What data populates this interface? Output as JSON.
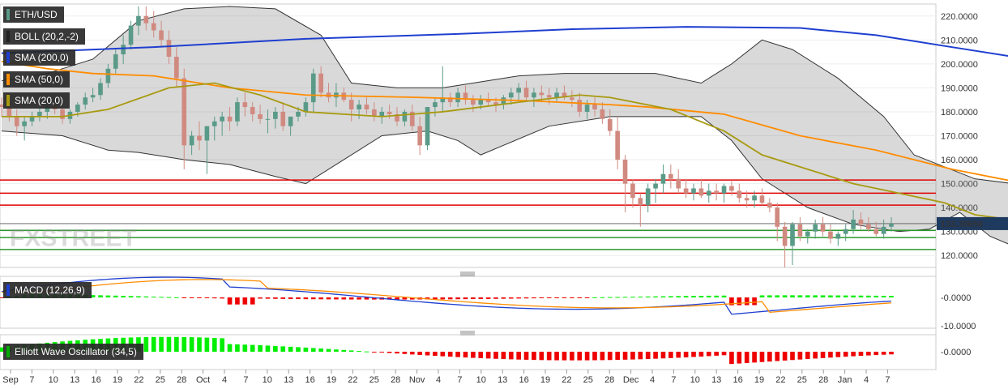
{
  "chart_data": [
    {
      "type": "candlestick",
      "symbol": "ETH/USD",
      "indicator_labels": [
        "BOLL (20,2,-2)",
        "SMA (200,0)",
        "SMA (50,0)",
        "SMA (20,0)"
      ],
      "y_ticks": [
        "220.0000",
        "210.0000",
        "200.0000",
        "190.0000",
        "180.0000",
        "170.0000",
        "160.0000",
        "150.0000",
        "140.0000",
        "130.0000",
        "120.0000"
      ],
      "ylim": [
        115,
        225
      ],
      "last_price": "133.30650",
      "last_price_value": 133.3065,
      "horizontal_levels_red": [
        151.5,
        146,
        141
      ],
      "horizontal_levels_green": [
        130.5,
        127.5,
        122.5
      ],
      "candles": [
        [
          183,
          186,
          178,
          182
        ],
        [
          182,
          184,
          176,
          178
        ],
        [
          178,
          181,
          170,
          174
        ],
        [
          174,
          178,
          168,
          176
        ],
        [
          176,
          180,
          174,
          178
        ],
        [
          178,
          182,
          176,
          180
        ],
        [
          180,
          184,
          177,
          182
        ],
        [
          182,
          185,
          179,
          181
        ],
        [
          181,
          184,
          175,
          177
        ],
        [
          177,
          181,
          175,
          180
        ],
        [
          180,
          184,
          178,
          183
        ],
        [
          183,
          188,
          181,
          186
        ],
        [
          186,
          190,
          184,
          187
        ],
        [
          187,
          194,
          185,
          192
        ],
        [
          192,
          200,
          190,
          198
        ],
        [
          198,
          206,
          196,
          204
        ],
        [
          204,
          212,
          200,
          208
        ],
        [
          208,
          218,
          206,
          216
        ],
        [
          216,
          224,
          212,
          220
        ],
        [
          220,
          224,
          214,
          217
        ],
        [
          217,
          222,
          211,
          214
        ],
        [
          214,
          218,
          207,
          210
        ],
        [
          210,
          214,
          200,
          203
        ],
        [
          203,
          207,
          190,
          194
        ],
        [
          194,
          198,
          156,
          166
        ],
        [
          166,
          172,
          162,
          170
        ],
        [
          170,
          176,
          164,
          168
        ],
        [
          168,
          174,
          154,
          174
        ],
        [
          174,
          178,
          168,
          176
        ],
        [
          176,
          180,
          170,
          178
        ],
        [
          178,
          182,
          172,
          176
        ],
        [
          176,
          186,
          174,
          184
        ],
        [
          184,
          188,
          178,
          182
        ],
        [
          182,
          184,
          176,
          179
        ],
        [
          179,
          183,
          175,
          177
        ],
        [
          177,
          181,
          171,
          177
        ],
        [
          177,
          182,
          173,
          180
        ],
        [
          180,
          184,
          172,
          174
        ],
        [
          174,
          178,
          170,
          178
        ],
        [
          178,
          182,
          176,
          180
        ],
        [
          180,
          186,
          178,
          184
        ],
        [
          184,
          198,
          180,
          196
        ],
        [
          196,
          199,
          186,
          188
        ],
        [
          188,
          192,
          184,
          186
        ],
        [
          186,
          192,
          182,
          188
        ],
        [
          188,
          190,
          184,
          185
        ],
        [
          185,
          188,
          176,
          181
        ],
        [
          181,
          185,
          177,
          183
        ],
        [
          183,
          186,
          179,
          181
        ],
        [
          181,
          184,
          176,
          178
        ],
        [
          178,
          182,
          175,
          180
        ],
        [
          180,
          183,
          177,
          179
        ],
        [
          179,
          182,
          174,
          176
        ],
        [
          176,
          181,
          174,
          180
        ],
        [
          180,
          183,
          172,
          174
        ],
        [
          174,
          178,
          162,
          166
        ],
        [
          166,
          182,
          164,
          182
        ],
        [
          182,
          186,
          178,
          184
        ],
        [
          184,
          199,
          180,
          186
        ],
        [
          186,
          188,
          182,
          184
        ],
        [
          184,
          190,
          182,
          188
        ],
        [
          188,
          191,
          183,
          185
        ],
        [
          185,
          187,
          180,
          183
        ],
        [
          183,
          187,
          181,
          185
        ],
        [
          185,
          188,
          182,
          184
        ],
        [
          184,
          186,
          180,
          183
        ],
        [
          183,
          187,
          181,
          186
        ],
        [
          186,
          190,
          183,
          188
        ],
        [
          188,
          192,
          185,
          190
        ],
        [
          190,
          193,
          184,
          186
        ],
        [
          186,
          190,
          182,
          188
        ],
        [
          188,
          191,
          184,
          187
        ],
        [
          187,
          190,
          183,
          186
        ],
        [
          186,
          190,
          184,
          188
        ],
        [
          188,
          191,
          185,
          186
        ],
        [
          186,
          189,
          182,
          185
        ],
        [
          185,
          188,
          178,
          180
        ],
        [
          180,
          185,
          177,
          183
        ],
        [
          183,
          186,
          178,
          181
        ],
        [
          181,
          184,
          175,
          177
        ],
        [
          177,
          181,
          170,
          172
        ],
        [
          172,
          178,
          156,
          160
        ],
        [
          160,
          162,
          138,
          150
        ],
        [
          150,
          152,
          140,
          144
        ],
        [
          144,
          146,
          132,
          141
        ],
        [
          141,
          150,
          138,
          148
        ],
        [
          148,
          152,
          142,
          150
        ],
        [
          150,
          158,
          146,
          154
        ],
        [
          154,
          158,
          148,
          152
        ],
        [
          152,
          156,
          146,
          148
        ],
        [
          148,
          152,
          144,
          146
        ],
        [
          146,
          150,
          143,
          148
        ],
        [
          148,
          152,
          144,
          145
        ],
        [
          145,
          150,
          142,
          147
        ],
        [
          147,
          150,
          143,
          146
        ],
        [
          146,
          150,
          142,
          149
        ],
        [
          149,
          151,
          145,
          147
        ],
        [
          147,
          150,
          142,
          144
        ],
        [
          144,
          147,
          140,
          143
        ],
        [
          143,
          147,
          140,
          145
        ],
        [
          145,
          148,
          141,
          142
        ],
        [
          142,
          144,
          138,
          140
        ],
        [
          140,
          142,
          126,
          132
        ],
        [
          132,
          134,
          115,
          124
        ],
        [
          124,
          134,
          116,
          133
        ],
        [
          133,
          136,
          126,
          128
        ],
        [
          128,
          131,
          125,
          130
        ],
        [
          130,
          135,
          127,
          133
        ],
        [
          133,
          136,
          128,
          130
        ],
        [
          130,
          133,
          125,
          127
        ],
        [
          127,
          130,
          124,
          129
        ],
        [
          129,
          133,
          126,
          131
        ],
        [
          131,
          139,
          129,
          135
        ],
        [
          135,
          138,
          131,
          133
        ],
        [
          133,
          136,
          130,
          131
        ],
        [
          131,
          134,
          128,
          129
        ],
        [
          129,
          135,
          127,
          132
        ],
        [
          132,
          136,
          130,
          133.3
        ]
      ],
      "sma200": [
        [
          0,
          204.5
        ],
        [
          20,
          207
        ],
        [
          40,
          210.5
        ],
        [
          60,
          212.5
        ],
        [
          75,
          214.5
        ],
        [
          90,
          215.5
        ],
        [
          105,
          215
        ],
        [
          115,
          212
        ],
        [
          125,
          207
        ],
        [
          135,
          202
        ],
        [
          145,
          197.5
        ],
        [
          152,
          193
        ]
      ],
      "sma50": [
        [
          0,
          201
        ],
        [
          6,
          198
        ],
        [
          12,
          196
        ],
        [
          20,
          195
        ],
        [
          30,
          190
        ],
        [
          40,
          187
        ],
        [
          55,
          186
        ],
        [
          70,
          184.5
        ],
        [
          80,
          183
        ],
        [
          85,
          182
        ],
        [
          95,
          179
        ],
        [
          105,
          170
        ],
        [
          115,
          164
        ],
        [
          125,
          156
        ],
        [
          133,
          151
        ],
        [
          140,
          146
        ],
        [
          148,
          141
        ],
        [
          152,
          144
        ]
      ],
      "sma20": [
        [
          0,
          178
        ],
        [
          8,
          178
        ],
        [
          14,
          181
        ],
        [
          22,
          190
        ],
        [
          28,
          192
        ],
        [
          34,
          187
        ],
        [
          40,
          180
        ],
        [
          50,
          178
        ],
        [
          58,
          180
        ],
        [
          68,
          184
        ],
        [
          76,
          187
        ],
        [
          80,
          186
        ],
        [
          88,
          181
        ],
        [
          95,
          172
        ],
        [
          100,
          162
        ],
        [
          106,
          156
        ],
        [
          112,
          150
        ],
        [
          118,
          146
        ],
        [
          124,
          142
        ],
        [
          128,
          137
        ],
        [
          135,
          134
        ],
        [
          142,
          130
        ],
        [
          148,
          129
        ],
        [
          152,
          131
        ]
      ],
      "boll_upper": [
        [
          0,
          193
        ],
        [
          6,
          196
        ],
        [
          12,
          202
        ],
        [
          18,
          218
        ],
        [
          24,
          223
        ],
        [
          30,
          224
        ],
        [
          36,
          223
        ],
        [
          42,
          212
        ],
        [
          46,
          192
        ],
        [
          52,
          190
        ],
        [
          58,
          190
        ],
        [
          62,
          192
        ],
        [
          68,
          195
        ],
        [
          74,
          196
        ],
        [
          80,
          196
        ],
        [
          86,
          196
        ],
        [
          92,
          192
        ],
        [
          96,
          200
        ],
        [
          100,
          210
        ],
        [
          104,
          206
        ],
        [
          110,
          194
        ],
        [
          116,
          178
        ],
        [
          120,
          162
        ],
        [
          124,
          157
        ],
        [
          128,
          152
        ],
        [
          133,
          150
        ],
        [
          137,
          159
        ],
        [
          142,
          158
        ],
        [
          148,
          146
        ],
        [
          152,
          138
        ]
      ],
      "boll_lower": [
        [
          0,
          172
        ],
        [
          8,
          170
        ],
        [
          14,
          164
        ],
        [
          18,
          163
        ],
        [
          24,
          160
        ],
        [
          30,
          158
        ],
        [
          36,
          153
        ],
        [
          40,
          150
        ],
        [
          44,
          158
        ],
        [
          50,
          170
        ],
        [
          56,
          172
        ],
        [
          60,
          168
        ],
        [
          63,
          162
        ],
        [
          66,
          166
        ],
        [
          72,
          174
        ],
        [
          80,
          178
        ],
        [
          86,
          178
        ],
        [
          92,
          178
        ],
        [
          96,
          168
        ],
        [
          100,
          152
        ],
        [
          106,
          140
        ],
        [
          112,
          133
        ],
        [
          118,
          130
        ],
        [
          122,
          131
        ],
        [
          126,
          138
        ],
        [
          130,
          128
        ],
        [
          136,
          120
        ],
        [
          140,
          117
        ],
        [
          146,
          118
        ],
        [
          152,
          123
        ]
      ],
      "macd_ticks": [
        "-0.0000",
        "-10.0000"
      ],
      "macd_hist": [
        0,
        1,
        2,
        3,
        4,
        5,
        6,
        7,
        8,
        9,
        10,
        11,
        12,
        13,
        14,
        15,
        16,
        17,
        18,
        19,
        20,
        21,
        22,
        23,
        24,
        25,
        26,
        27,
        28,
        29,
        30,
        31,
        32,
        33,
        34,
        35,
        36,
        37,
        38,
        39,
        40,
        41,
        42,
        43,
        44,
        45,
        46,
        47,
        48,
        49,
        50,
        51,
        52,
        53,
        54,
        55,
        56,
        57,
        58,
        59,
        60,
        61,
        62,
        63,
        64,
        65,
        66,
        67,
        68,
        69,
        70,
        71,
        72,
        73,
        74,
        75,
        76,
        77,
        78,
        79,
        80,
        81,
        82,
        83,
        84,
        85,
        86,
        87,
        88,
        89,
        90,
        91,
        92,
        93,
        94,
        95,
        96,
        97,
        98,
        99,
        100,
        101,
        102,
        103,
        104,
        105,
        106,
        107,
        108,
        109,
        110,
        111,
        112,
        113,
        114,
        115,
        116,
        117,
        118,
        119,
        120,
        121,
        122,
        123,
        124,
        125,
        126,
        127,
        128,
        129,
        130,
        131,
        132,
        133,
        134,
        135,
        136,
        137,
        138,
        139,
        140,
        141,
        142,
        143,
        144,
        145,
        146,
        147,
        148,
        149,
        150,
        151,
        152
      ],
      "ewo_ticks": [
        "-0.0000"
      ],
      "x_ticks": [
        "Sep",
        "7",
        "10",
        "13",
        "16",
        "19",
        "22",
        "25",
        "28",
        "Oct",
        "4",
        "7",
        "10",
        "13",
        "16",
        "19",
        "22",
        "25",
        "28",
        "Nov",
        "4",
        "7",
        "10",
        "13",
        "16",
        "19",
        "22",
        "25",
        "28",
        "Dec",
        "4",
        "7",
        "10",
        "13",
        "16",
        "19",
        "22",
        "25",
        "28",
        "Jan",
        "4",
        "7"
      ]
    },
    {
      "type": "histogram",
      "title": "MACD (12,26,9)"
    },
    {
      "type": "histogram",
      "title": "Elliott Wave Oscillator (34,5)"
    }
  ],
  "colors": {
    "up": "#5a9a88",
    "down": "#d08a80",
    "sma200": "#1f3fd0",
    "sma50": "#ff8c00",
    "sma20": "#a89a10",
    "boll": "#333333",
    "red_level": "#e00000",
    "green_level": "#2a9a2a",
    "hist_pos": "#00ee00",
    "hist_neg": "#ee0000",
    "macd_line": "#1f3fd0",
    "signal_line": "#ff8c00"
  },
  "watermark": "FXSTREET"
}
